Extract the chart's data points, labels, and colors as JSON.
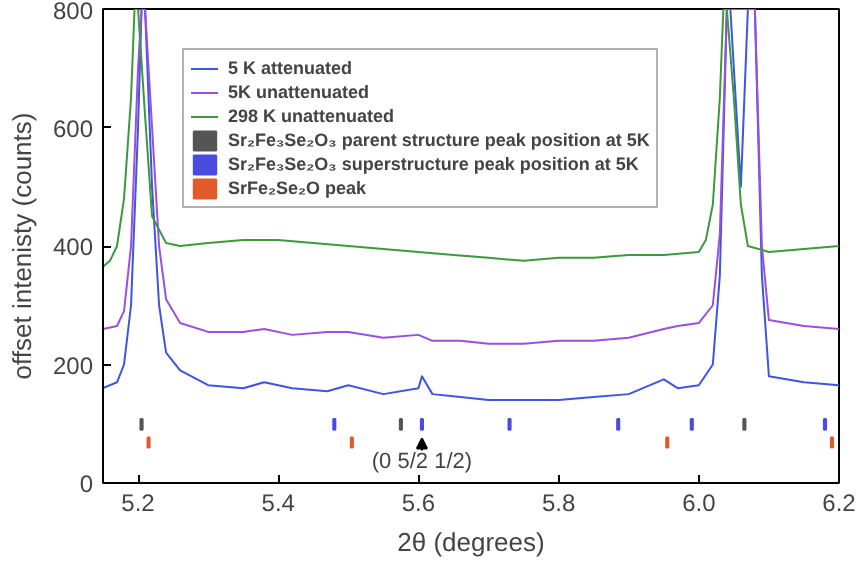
{
  "chart_data": {
    "type": "line",
    "xlabel": "2θ (degrees)",
    "ylabel": "offset intenisty (counts)",
    "xlim": [
      5.15,
      6.2
    ],
    "xticks": [
      5.2,
      5.4,
      5.6,
      5.8,
      {
        "value": 6.0,
        "label": "6.0"
      },
      6.2
    ],
    "ylim": [
      0,
      800
    ],
    "yticks": [
      0,
      200,
      400,
      600,
      800
    ],
    "legend": "top left",
    "grid": false,
    "line_style": "solid",
    "marker": "none",
    "annotations": [
      {
        "text": "(0 5/2 1/2)",
        "x": 5.605,
        "y": 75
      }
    ],
    "series": [
      {
        "name": "5 K attenuated",
        "color": "#3d55e0",
        "x": [
          5.15,
          5.17,
          5.18,
          5.19,
          5.2,
          5.205,
          5.21,
          5.22,
          5.23,
          5.24,
          5.26,
          5.3,
          5.35,
          5.38,
          5.42,
          5.47,
          5.5,
          5.55,
          5.6,
          5.605,
          5.62,
          5.66,
          5.7,
          5.75,
          5.8,
          5.85,
          5.9,
          5.95,
          5.97,
          6.0,
          6.02,
          6.03,
          6.04,
          6.045,
          6.05,
          6.06,
          6.07,
          6.08,
          6.09,
          6.1,
          6.15,
          6.2
        ],
        "values": [
          160,
          170,
          200,
          300,
          600,
          800,
          800,
          500,
          300,
          220,
          190,
          165,
          160,
          170,
          160,
          155,
          165,
          150,
          160,
          180,
          150,
          145,
          140,
          140,
          140,
          145,
          150,
          175,
          160,
          165,
          200,
          350,
          800,
          800,
          700,
          500,
          800,
          800,
          350,
          180,
          170,
          165
        ]
      },
      {
        "name": "5K unattenuated",
        "color": "#9b4fe0",
        "x": [
          5.15,
          5.17,
          5.18,
          5.19,
          5.2,
          5.205,
          5.21,
          5.22,
          5.23,
          5.24,
          5.26,
          5.3,
          5.35,
          5.38,
          5.42,
          5.47,
          5.5,
          5.55,
          5.6,
          5.62,
          5.66,
          5.7,
          5.75,
          5.8,
          5.85,
          5.9,
          5.95,
          5.97,
          6.0,
          6.02,
          6.03,
          6.04,
          6.05,
          6.06,
          6.07,
          6.08,
          6.09,
          6.1,
          6.15,
          6.2
        ],
        "values": [
          260,
          265,
          290,
          400,
          700,
          800,
          800,
          600,
          400,
          310,
          270,
          255,
          255,
          260,
          250,
          255,
          255,
          245,
          250,
          240,
          240,
          235,
          235,
          240,
          240,
          245,
          260,
          265,
          270,
          300,
          420,
          800,
          800,
          800,
          800,
          800,
          400,
          275,
          265,
          260
        ]
      },
      {
        "name": "298 K unattenuated",
        "color": "#3c9a3c",
        "x": [
          5.15,
          5.16,
          5.17,
          5.18,
          5.19,
          5.195,
          5.2,
          5.21,
          5.22,
          5.24,
          5.26,
          5.3,
          5.35,
          5.4,
          5.45,
          5.5,
          5.55,
          5.6,
          5.65,
          5.7,
          5.75,
          5.8,
          5.85,
          5.9,
          5.95,
          6.0,
          6.01,
          6.02,
          6.03,
          6.035,
          6.04,
          6.05,
          6.06,
          6.07,
          6.1,
          6.15,
          6.2
        ],
        "values": [
          365,
          375,
          400,
          480,
          650,
          800,
          800,
          620,
          450,
          405,
          400,
          405,
          410,
          410,
          405,
          400,
          395,
          390,
          385,
          380,
          375,
          380,
          380,
          385,
          385,
          390,
          410,
          470,
          650,
          800,
          800,
          650,
          470,
          400,
          390,
          395,
          400
        ]
      },
      {
        "name": "Sr₂Fe₃Se₂O₃ parent structure peak position at 5K",
        "type": "bar",
        "color": "#555555",
        "x": [
          5.205,
          5.575,
          6.065
        ],
        "base": [
          90,
          90,
          90
        ],
        "values": [
          18,
          18,
          18
        ]
      },
      {
        "name": "Sr₂Fe₃Se₂O₃ superstructure peak position at 5K",
        "type": "bar",
        "color": "#4b4be0",
        "x": [
          5.48,
          5.605,
          5.73,
          5.885,
          5.99,
          6.18
        ],
        "base": [
          90,
          90,
          90,
          90,
          90,
          90
        ],
        "values": [
          18,
          18,
          18,
          18,
          18,
          18
        ]
      },
      {
        "name": "SrFe₂Se₂O peak",
        "type": "bar",
        "color": "#e05a2a",
        "x": [
          5.215,
          5.505,
          5.955,
          6.19
        ],
        "base": [
          60,
          60,
          60,
          60
        ],
        "values": [
          17,
          17,
          17,
          17
        ]
      }
    ]
  }
}
